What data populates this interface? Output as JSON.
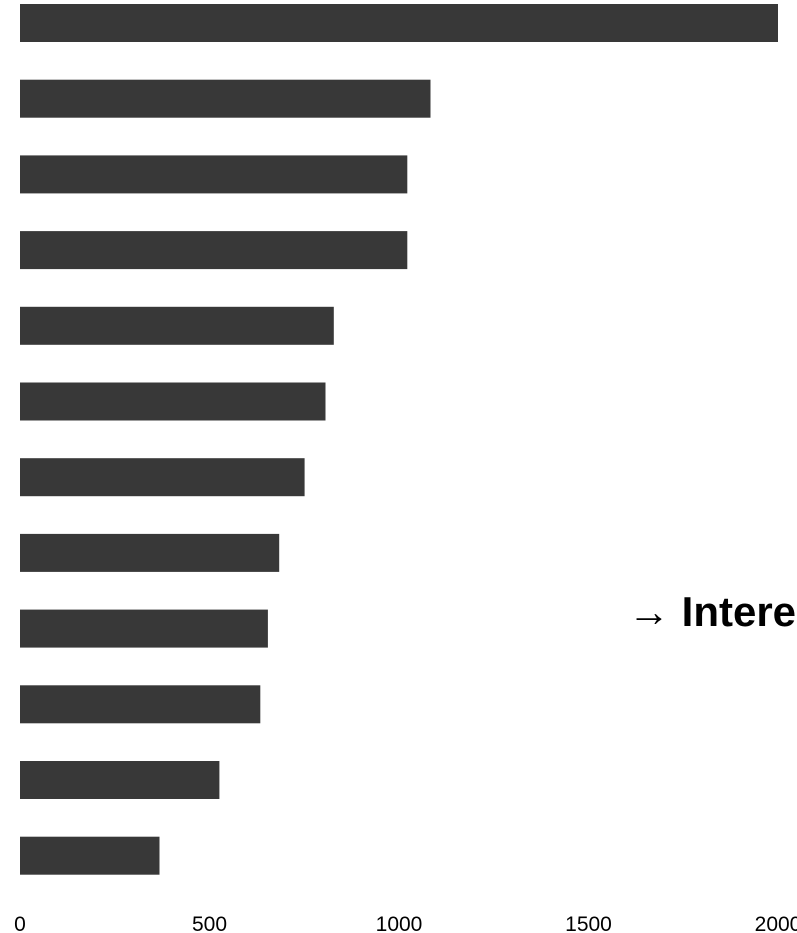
{
  "chart_data": {
    "type": "bar",
    "orientation": "horizontal",
    "values": [
      2000,
      1083,
      1022,
      1022,
      828,
      806,
      751,
      684,
      654,
      634,
      526,
      368
    ],
    "xlim": [
      0,
      2000
    ],
    "x_ticks": [
      "0",
      "500",
      "1000",
      "1500",
      "2000"
    ],
    "annotation": "→ Intere",
    "bar_color": "#383838",
    "grid": false,
    "legend": "none"
  }
}
